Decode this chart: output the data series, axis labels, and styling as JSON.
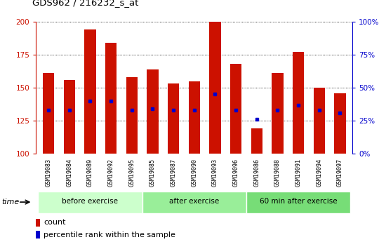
{
  "title": "GDS962 / 216232_s_at",
  "samples": [
    "GSM19083",
    "GSM19084",
    "GSM19089",
    "GSM19092",
    "GSM19095",
    "GSM19085",
    "GSM19087",
    "GSM19090",
    "GSM19093",
    "GSM19096",
    "GSM19086",
    "GSM19088",
    "GSM19091",
    "GSM19094",
    "GSM19097"
  ],
  "counts": [
    161,
    156,
    194,
    184,
    158,
    164,
    153,
    155,
    200,
    168,
    119,
    161,
    177,
    150,
    146
  ],
  "percentile_ranks": [
    33,
    33,
    40,
    40,
    33,
    34,
    33,
    33,
    45,
    33,
    26,
    33,
    37,
    33,
    31
  ],
  "groups": [
    {
      "label": "before exercise",
      "start": 0,
      "end": 5,
      "color": "#ccffcc"
    },
    {
      "label": "after exercise",
      "start": 5,
      "end": 10,
      "color": "#99ee99"
    },
    {
      "label": "60 min after exercise",
      "start": 10,
      "end": 15,
      "color": "#77dd77"
    }
  ],
  "bar_color": "#cc1100",
  "percentile_color": "#0000cc",
  "bar_bottom": 100,
  "ylim_left": [
    100,
    200
  ],
  "ylim_right": [
    0,
    100
  ],
  "yticks_left": [
    100,
    125,
    150,
    175,
    200
  ],
  "yticks_right": [
    0,
    25,
    50,
    75,
    100
  ],
  "grid_color": "#000000",
  "bar_width": 0.55,
  "legend_count_label": "count",
  "legend_percentile_label": "percentile rank within the sample",
  "tick_label_bg": "#d0d0d0",
  "ylabel_right_color": "#0000cc",
  "bar_color_left": "#cc1100"
}
